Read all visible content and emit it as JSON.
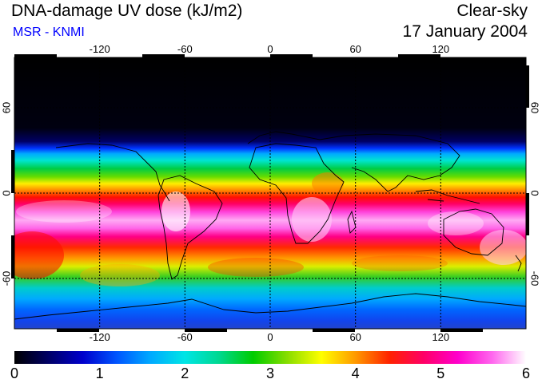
{
  "header": {
    "title": "DNA-damage UV dose (kJ/m2)",
    "subtitle": "MSR - KNMI",
    "mode": "Clear-sky",
    "date": "17 January 2004"
  },
  "colors": {
    "subtitle": "#0000ff",
    "colorbar_stops": [
      "#000000",
      "#000066",
      "#0000cc",
      "#0055ff",
      "#00aaff",
      "#00e5e5",
      "#00d890",
      "#00cc00",
      "#88dd00",
      "#ffff00",
      "#ff9900",
      "#ff2200",
      "#ff0066",
      "#ff00cc",
      "#ff66ee",
      "#ffffff"
    ]
  },
  "map": {
    "lon_ticks": [
      "-120",
      "-60",
      "0",
      "60",
      "120"
    ],
    "lat_ticks": [
      "60",
      "0",
      "-60"
    ],
    "lat_ticks_right": [
      "60",
      "0",
      "-60"
    ]
  },
  "colorbar": {
    "labels": [
      "0",
      "1",
      "2",
      "3",
      "4",
      "5",
      "6"
    ],
    "min": 0,
    "max": 6,
    "units": "kJ/m2"
  }
}
